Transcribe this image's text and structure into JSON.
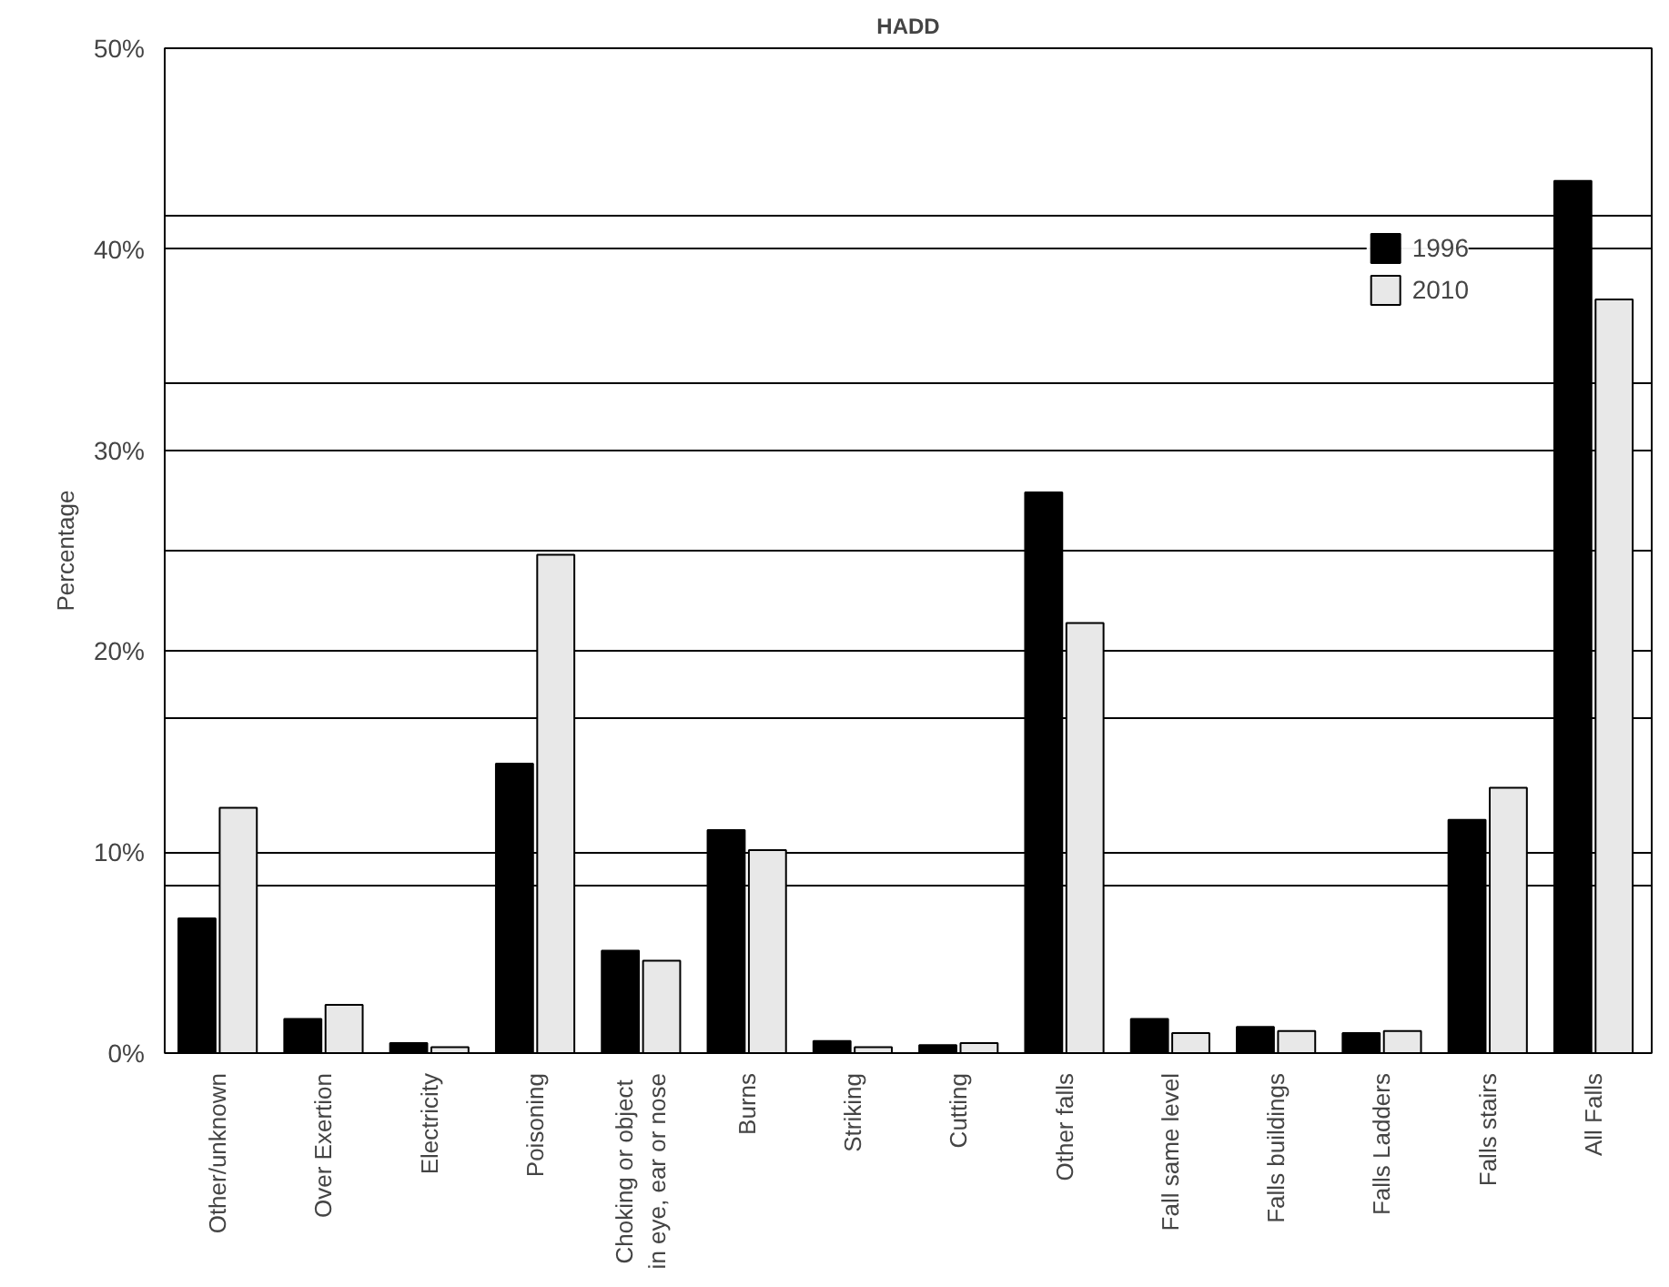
{
  "chart_data": {
    "type": "bar",
    "title": "HADD",
    "ylabel": "Percentage",
    "categories": [
      "Other/unknown",
      "Over Exertion",
      "Electricity",
      "Poisoning",
      "Choking  or object\nin eye, ear or nose",
      "Burns",
      "Striking",
      "Cutting",
      "Other falls",
      "Fall same level",
      "Falls buildings",
      "Falls Ladders",
      "Falls stairs",
      "All Falls"
    ],
    "series": [
      {
        "name": "1996",
        "color": "#000000",
        "values": [
          6.7,
          1.7,
          0.5,
          14.4,
          5.1,
          11.1,
          0.6,
          0.4,
          27.9,
          1.7,
          1.3,
          1.0,
          11.6,
          43.4
        ]
      },
      {
        "name": "2010",
        "color": "#e8e8e8",
        "values": [
          12.2,
          2.4,
          0.3,
          24.8,
          4.6,
          10.1,
          0.3,
          0.5,
          21.4,
          1.0,
          1.1,
          1.1,
          13.2,
          37.5
        ]
      }
    ],
    "ylim": [
      0,
      50
    ],
    "yticks": [
      {
        "value": 0,
        "label": "0%"
      },
      {
        "value": 8.333,
        "label": null
      },
      {
        "value": 10,
        "label": "10%"
      },
      {
        "value": 16.667,
        "label": null
      },
      {
        "value": 20,
        "label": "20%"
      },
      {
        "value": 25,
        "label": null
      },
      {
        "value": 30,
        "label": "30%"
      },
      {
        "value": 33.333,
        "label": null
      },
      {
        "value": 40,
        "label": "40%"
      },
      {
        "value": 41.667,
        "label": null
      },
      {
        "value": 50,
        "label": "50%"
      }
    ],
    "grid": "y",
    "legend": "top right"
  }
}
